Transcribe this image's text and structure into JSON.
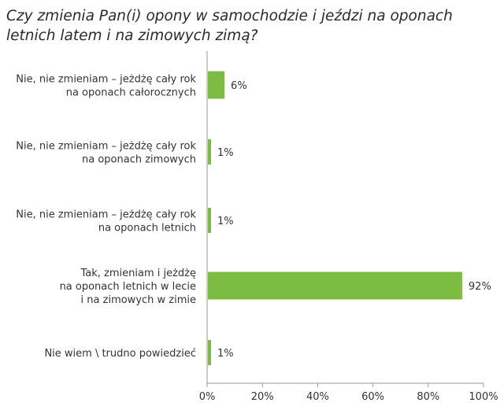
{
  "chart_data": {
    "type": "bar",
    "orientation": "horizontal",
    "title": "Czy zmienia Pan(i) opony w samochodzie i jeździ na oponach letnich latem i na zimowych zimą?",
    "categories": [
      [
        "Nie, nie zmieniam – jeżdżę cały rok",
        "na oponach całorocznych"
      ],
      [
        "Nie, nie zmieniam – jeżdżę cały rok",
        "na oponach zimowych"
      ],
      [
        "Nie, nie zmieniam – jeżdżę cały rok",
        "na oponach letnich"
      ],
      [
        "Tak, zmieniam i jeżdżę",
        "na oponach letnich w lecie",
        "i na zimowych w zimie"
      ],
      [
        "Nie wiem \\ trudno powiedzieć"
      ]
    ],
    "values": [
      6,
      1,
      1,
      92,
      1
    ],
    "value_labels": [
      "6%",
      "1%",
      "1%",
      "92%",
      "1%"
    ],
    "xlim": [
      0,
      100
    ],
    "xticks": [
      0,
      20,
      40,
      60,
      80,
      100
    ],
    "xtick_labels": [
      "0%",
      "20%",
      "40%",
      "60%",
      "80%",
      "100%"
    ],
    "xlabel": "",
    "ylabel": "",
    "grid": false,
    "colors": {
      "bar": "#7cbc42",
      "axis": "#9a9a9a",
      "text": "#333333"
    }
  }
}
